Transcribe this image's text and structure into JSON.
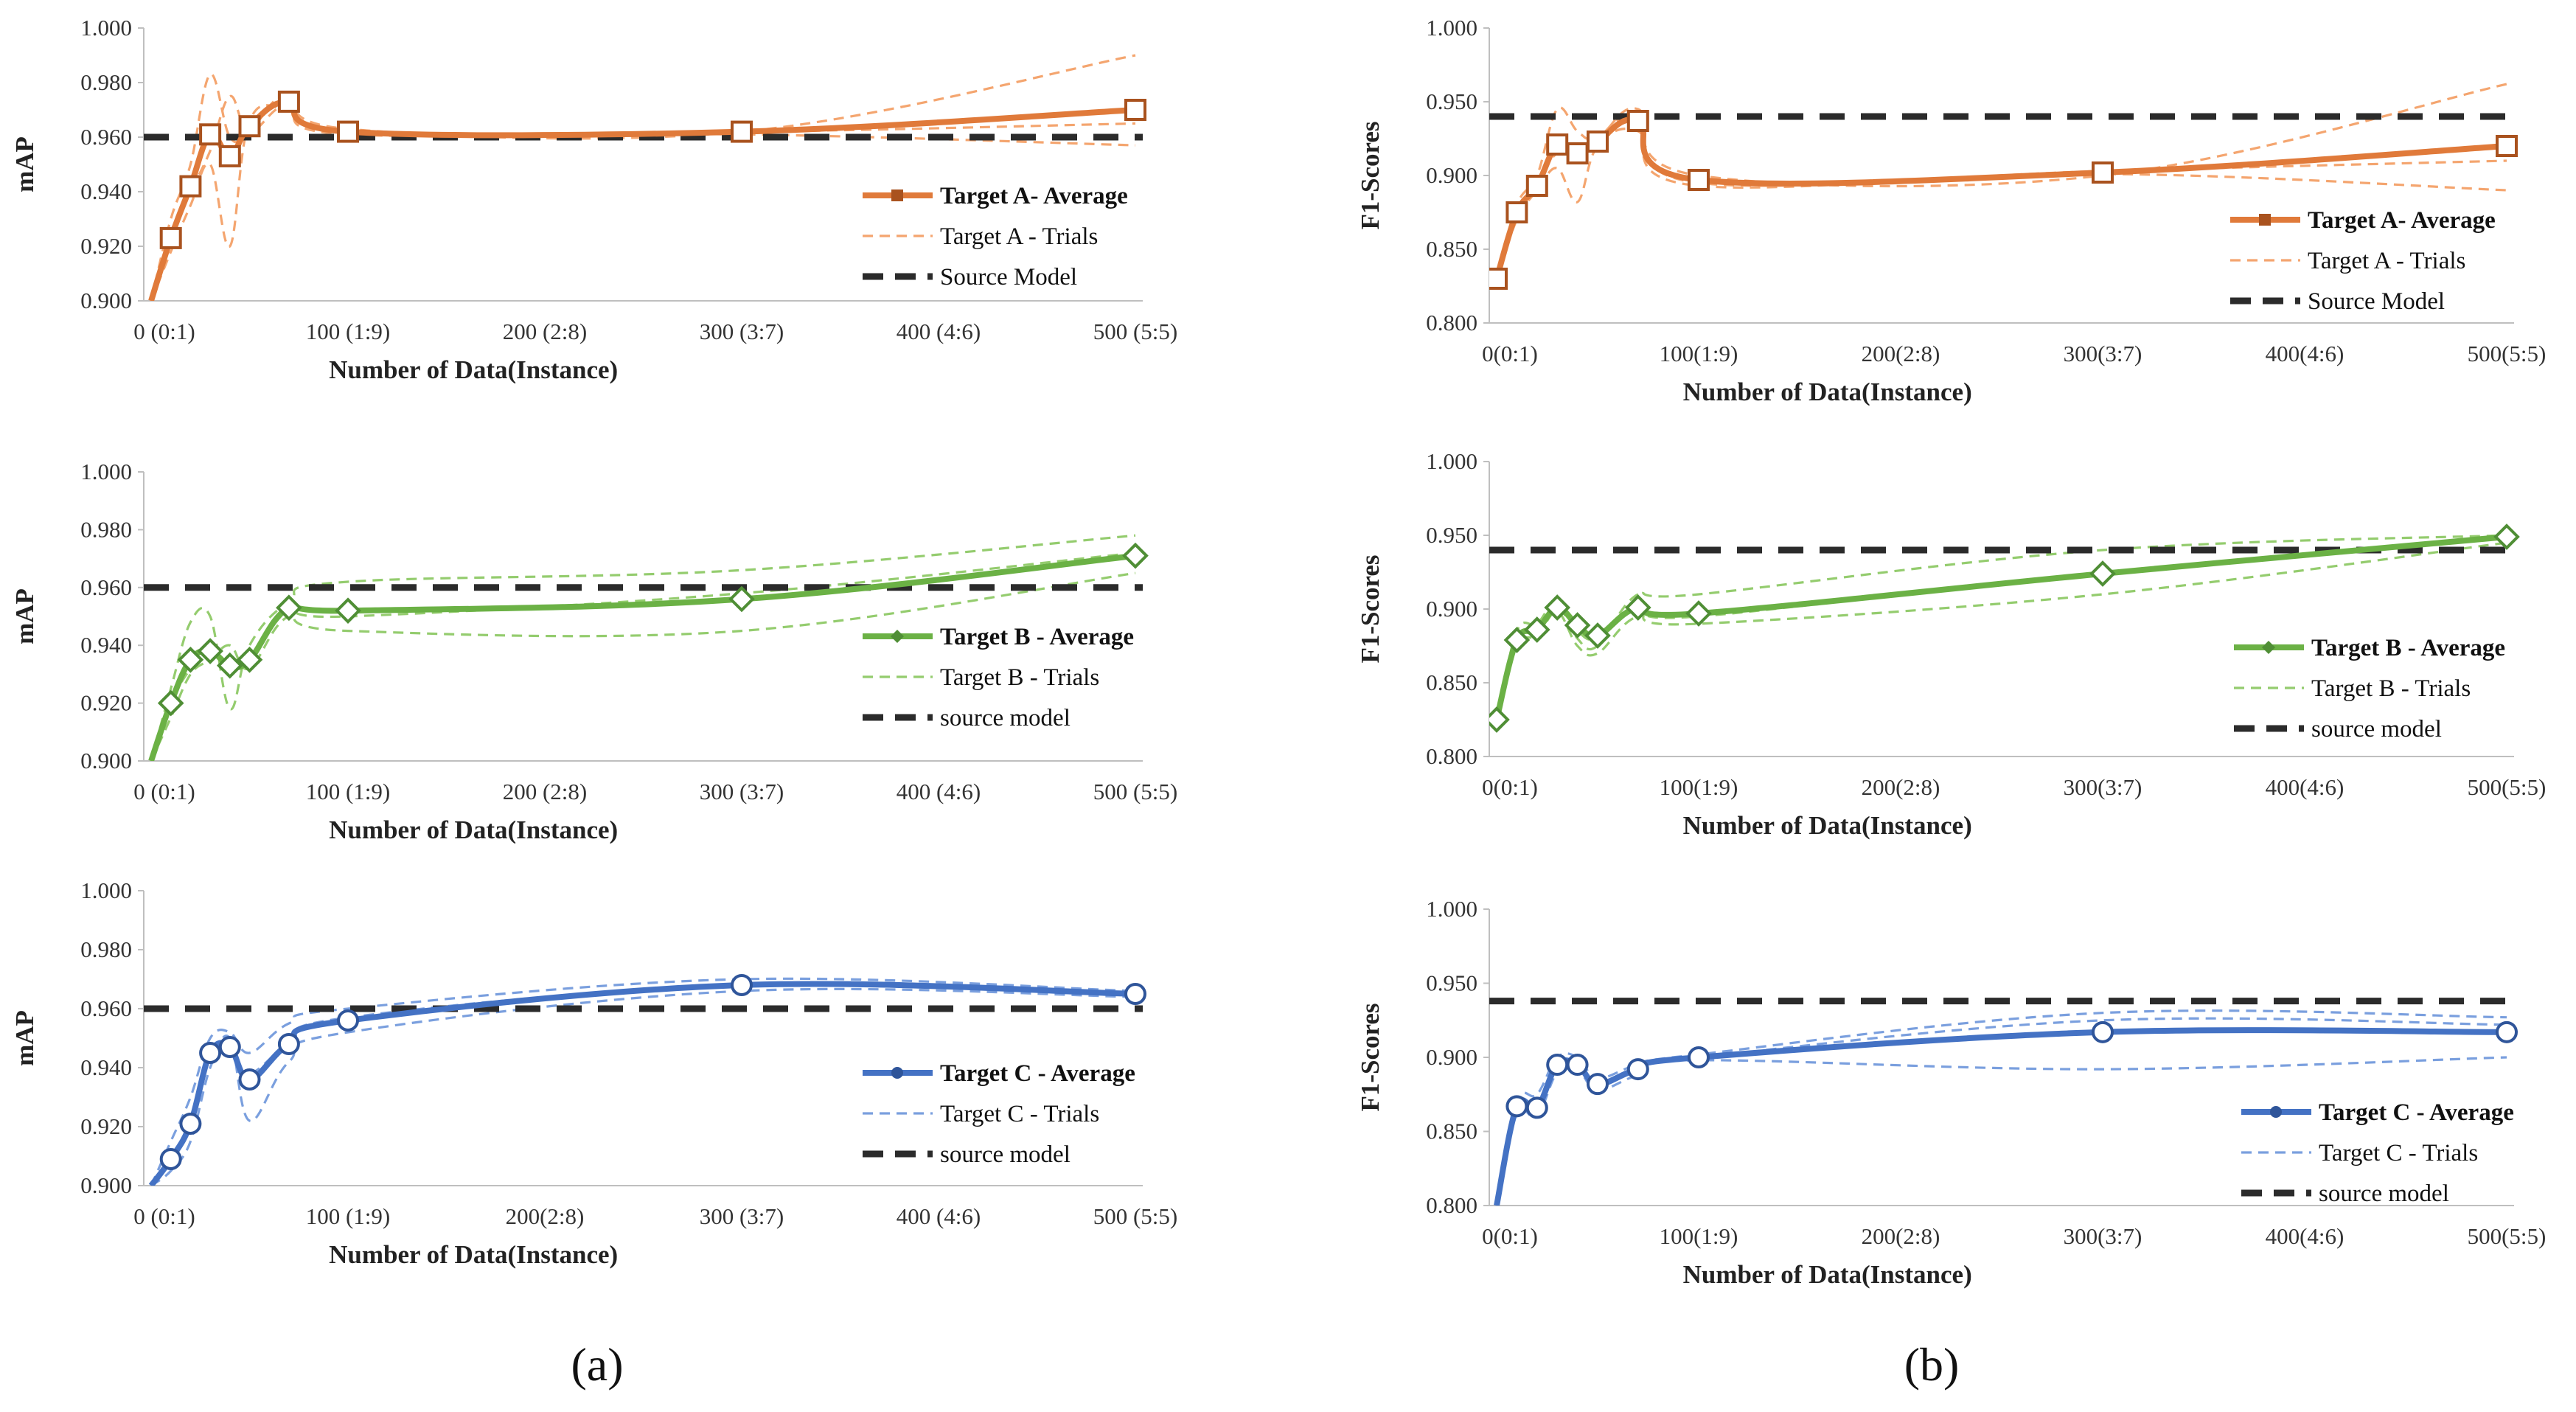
{
  "figure": {
    "panel_labels": [
      "(a)",
      "(b)"
    ],
    "colors": {
      "orange": "#E07A3A",
      "orange_light": "#F4A56F",
      "orange_marker": "#A9521E",
      "green": "#6BB145",
      "green_light": "#94CC6E",
      "green_marker": "#4F8E35",
      "blue": "#4472C4",
      "blue_light": "#7A9FDE",
      "blue_marker": "#2F559A",
      "source": "#2B2B2B",
      "axis": "#BFBFBF"
    }
  },
  "chart_data": [
    {
      "id": "mapA",
      "type": "line",
      "theme": "orange",
      "marker": "square",
      "avgBold": true,
      "xlabel": "Number of Data(Instance)",
      "ylabel": "mAP",
      "ylim": [
        0.9,
        1.0
      ],
      "xlim": [
        0,
        500
      ],
      "yticks": [
        "0.900",
        "0.920",
        "0.940",
        "0.960",
        "0.980",
        "1.000"
      ],
      "xticks": [
        "0 (0:1)",
        "100 (1:9)",
        "200 (2:8)",
        "300 (3:7)",
        "400 (4:6)",
        "500 (5:5)"
      ],
      "series": [
        {
          "name": "Target A- Average",
          "style": "average",
          "x": [
            0,
            10,
            20,
            30,
            40,
            50,
            70,
            100,
            300,
            500
          ],
          "y": [
            0.9,
            0.923,
            0.942,
            0.961,
            0.953,
            0.964,
            0.973,
            0.962,
            0.962,
            0.97
          ]
        },
        {
          "name": "Target A - Trials",
          "style": "trial",
          "x": [
            0,
            10,
            20,
            30,
            40,
            50,
            70,
            100,
            300,
            500
          ],
          "y": [
            0.9,
            0.93,
            0.95,
            0.983,
            0.96,
            0.962,
            0.976,
            0.963,
            0.962,
            0.99
          ]
        },
        {
          "name": "",
          "style": "trial",
          "x": [
            0,
            10,
            20,
            30,
            40,
            50,
            70,
            100,
            300,
            500
          ],
          "y": [
            0.9,
            0.918,
            0.935,
            0.95,
            0.92,
            0.966,
            0.97,
            0.961,
            0.961,
            0.957
          ]
        },
        {
          "name": "",
          "style": "trial",
          "x": [
            0,
            10,
            20,
            30,
            40,
            50,
            70,
            100,
            300,
            500
          ],
          "y": [
            0.9,
            0.925,
            0.94,
            0.955,
            0.975,
            0.962,
            0.972,
            0.962,
            0.962,
            0.965
          ]
        },
        {
          "name": "Source Model",
          "style": "source",
          "x": [
            0,
            500
          ],
          "y": [
            0.96,
            0.96
          ]
        }
      ]
    },
    {
      "id": "f1A",
      "type": "line",
      "theme": "orange",
      "marker": "square",
      "avgBold": true,
      "xlabel": "Number of Data(Instance)",
      "ylabel": "F1-Scores",
      "ylim": [
        0.8,
        1.0
      ],
      "xlim": [
        0,
        500
      ],
      "yticks": [
        "0.800",
        "0.850",
        "0.900",
        "0.950",
        "1.000"
      ],
      "xticks": [
        "0(0:1)",
        "100(1:9)",
        "200(2:8)",
        "300(3:7)",
        "400(4:6)",
        "500(5:5)"
      ],
      "series": [
        {
          "name": "Target A- Average",
          "style": "average",
          "x": [
            0,
            10,
            20,
            30,
            40,
            50,
            70,
            100,
            300,
            500
          ],
          "y": [
            0.83,
            0.875,
            0.893,
            0.921,
            0.915,
            0.923,
            0.937,
            0.897,
            0.902,
            0.92
          ]
        },
        {
          "name": "Target A - Trials",
          "style": "trial",
          "x": [
            0,
            10,
            20,
            30,
            40,
            50,
            70,
            100,
            300,
            500
          ],
          "y": [
            0.83,
            0.88,
            0.9,
            0.945,
            0.93,
            0.925,
            0.945,
            0.9,
            0.9,
            0.962
          ]
        },
        {
          "name": "",
          "style": "trial",
          "x": [
            0,
            10,
            20,
            30,
            40,
            50,
            70,
            100,
            300,
            500
          ],
          "y": [
            0.83,
            0.87,
            0.89,
            0.905,
            0.882,
            0.92,
            0.93,
            0.893,
            0.901,
            0.89
          ]
        },
        {
          "name": "",
          "style": "trial",
          "x": [
            0,
            10,
            20,
            30,
            40,
            50,
            70,
            100,
            300,
            500
          ],
          "y": [
            0.83,
            0.875,
            0.895,
            0.915,
            0.91,
            0.925,
            0.94,
            0.895,
            0.903,
            0.91
          ]
        },
        {
          "name": "Source Model",
          "style": "source",
          "x": [
            0,
            500
          ],
          "y": [
            0.94,
            0.94
          ]
        }
      ]
    },
    {
      "id": "mapB",
      "type": "line",
      "theme": "green",
      "marker": "diamond",
      "avgBold": true,
      "xlabel": "Number of Data(Instance)",
      "ylabel": "mAP",
      "ylim": [
        0.9,
        1.0
      ],
      "xlim": [
        0,
        500
      ],
      "yticks": [
        "0.900",
        "0.920",
        "0.940",
        "0.960",
        "0.980",
        "1.000"
      ],
      "xticks": [
        "0 (0:1)",
        "100 (1:9)",
        "200 (2:8)",
        "300 (3:7)",
        "400 (4:6)",
        "500 (5:5)"
      ],
      "series": [
        {
          "name": "Target B - Average",
          "style": "average",
          "x": [
            0,
            10,
            20,
            30,
            40,
            50,
            70,
            100,
            300,
            500
          ],
          "y": [
            0.9,
            0.92,
            0.935,
            0.938,
            0.933,
            0.935,
            0.953,
            0.952,
            0.956,
            0.971
          ]
        },
        {
          "name": "Target B - Trials",
          "style": "trial",
          "x": [
            0,
            10,
            20,
            30,
            40,
            50,
            70,
            100,
            300,
            500
          ],
          "y": [
            0.9,
            0.925,
            0.948,
            0.95,
            0.918,
            0.94,
            0.955,
            0.962,
            0.966,
            0.978
          ]
        },
        {
          "name": "",
          "style": "trial",
          "x": [
            0,
            10,
            20,
            30,
            40,
            50,
            70,
            100,
            300,
            500
          ],
          "y": [
            0.9,
            0.915,
            0.93,
            0.935,
            0.94,
            0.932,
            0.95,
            0.945,
            0.945,
            0.965
          ]
        },
        {
          "name": "",
          "style": "trial",
          "x": [
            0,
            10,
            20,
            30,
            40,
            50,
            70,
            100,
            300,
            500
          ],
          "y": [
            0.9,
            0.92,
            0.932,
            0.94,
            0.935,
            0.935,
            0.952,
            0.95,
            0.958,
            0.972
          ]
        },
        {
          "name": "source model",
          "style": "source",
          "x": [
            0,
            500
          ],
          "y": [
            0.96,
            0.96
          ]
        }
      ]
    },
    {
      "id": "f1B",
      "type": "line",
      "theme": "green",
      "marker": "diamond",
      "avgBold": true,
      "xlabel": "Number of Data(Instance)",
      "ylabel": "F1-Scores",
      "ylim": [
        0.8,
        1.0
      ],
      "xlim": [
        0,
        500
      ],
      "yticks": [
        "0.800",
        "0.850",
        "0.900",
        "0.950",
        "1.000"
      ],
      "xticks": [
        "0(0:1)",
        "100(1:9)",
        "200(2:8)",
        "300(3:7)",
        "400(4:6)",
        "500(5:5)"
      ],
      "series": [
        {
          "name": "Target B - Average",
          "style": "average",
          "x": [
            0,
            10,
            20,
            30,
            40,
            50,
            70,
            100,
            300,
            500
          ],
          "y": [
            0.825,
            0.879,
            0.886,
            0.901,
            0.889,
            0.882,
            0.901,
            0.897,
            0.924,
            0.949
          ]
        },
        {
          "name": "Target B - Trials",
          "style": "trial",
          "x": [
            0,
            10,
            20,
            30,
            40,
            50,
            70,
            100,
            300,
            500
          ],
          "y": [
            0.825,
            0.885,
            0.89,
            0.905,
            0.88,
            0.875,
            0.91,
            0.91,
            0.94,
            0.95
          ]
        },
        {
          "name": "",
          "style": "trial",
          "x": [
            0,
            10,
            20,
            30,
            40,
            50,
            70,
            100,
            300,
            500
          ],
          "y": [
            0.825,
            0.875,
            0.882,
            0.898,
            0.875,
            0.87,
            0.895,
            0.89,
            0.91,
            0.945
          ]
        },
        {
          "name": "",
          "style": "trial",
          "x": [
            0,
            10,
            20,
            30,
            40,
            50,
            70,
            100,
            300,
            500
          ],
          "y": [
            0.825,
            0.878,
            0.888,
            0.9,
            0.885,
            0.88,
            0.9,
            0.895,
            0.925,
            0.948
          ]
        },
        {
          "name": "source model",
          "style": "source",
          "x": [
            0,
            500
          ],
          "y": [
            0.94,
            0.94
          ]
        }
      ]
    },
    {
      "id": "mapC",
      "type": "line",
      "theme": "blue",
      "marker": "circle",
      "avgBold": true,
      "xlabel": "Number of Data(Instance)",
      "ylabel": "mAP",
      "ylim": [
        0.9,
        1.0
      ],
      "xlim": [
        0,
        500
      ],
      "yticks": [
        "0.900",
        "0.920",
        "0.940",
        "0.960",
        "0.980",
        "1.000"
      ],
      "xticks": [
        "0 (0:1)",
        "100 (1:9)",
        "200(2:8)",
        "300 (3:7)",
        "400 (4:6)",
        "500 (5:5)"
      ],
      "series": [
        {
          "name": "Target C - Average",
          "style": "average",
          "x": [
            0,
            10,
            20,
            30,
            40,
            50,
            70,
            100,
            300,
            500
          ],
          "y": [
            0.9,
            0.909,
            0.921,
            0.945,
            0.947,
            0.936,
            0.948,
            0.956,
            0.968,
            0.965
          ]
        },
        {
          "name": "Target C - Trials",
          "style": "trial",
          "x": [
            0,
            10,
            20,
            30,
            40,
            50,
            70,
            100,
            300,
            500
          ],
          "y": [
            0.9,
            0.915,
            0.93,
            0.95,
            0.952,
            0.945,
            0.955,
            0.96,
            0.97,
            0.966
          ]
        },
        {
          "name": "",
          "style": "trial",
          "x": [
            0,
            10,
            20,
            30,
            40,
            50,
            70,
            100,
            300,
            500
          ],
          "y": [
            0.9,
            0.905,
            0.915,
            0.94,
            0.95,
            0.922,
            0.942,
            0.952,
            0.966,
            0.964
          ]
        },
        {
          "name": "",
          "style": "trial",
          "x": [
            0,
            10,
            20,
            30,
            40,
            50,
            70,
            100,
            300,
            500
          ],
          "y": [
            0.9,
            0.91,
            0.92,
            0.945,
            0.945,
            0.938,
            0.948,
            0.957,
            0.968,
            0.965
          ]
        },
        {
          "name": "source model",
          "style": "source",
          "x": [
            0,
            500
          ],
          "y": [
            0.96,
            0.96
          ]
        }
      ]
    },
    {
      "id": "f1C",
      "type": "line",
      "theme": "blue",
      "marker": "circle",
      "avgBold": true,
      "xlabel": "Number of Data(Instance)",
      "ylabel": "F1-Scores",
      "ylim": [
        0.8,
        1.0
      ],
      "xlim": [
        0,
        500
      ],
      "yticks": [
        "0.800",
        "0.850",
        "0.900",
        "0.950",
        "1.000"
      ],
      "xticks": [
        "0(0:1)",
        "100(1:9)",
        "200(2:8)",
        "300(3:7)",
        "400(4:6)",
        "500(5:5)"
      ],
      "series": [
        {
          "name": "Target C - Average",
          "style": "average",
          "x": [
            0,
            10,
            20,
            30,
            40,
            50,
            70,
            100,
            300,
            500
          ],
          "y": [
            0.8,
            0.867,
            0.866,
            0.895,
            0.895,
            0.882,
            0.892,
            0.9,
            0.917,
            0.917
          ]
        },
        {
          "name": "Target C - Trials",
          "style": "trial",
          "x": [
            0,
            10,
            20,
            30,
            40,
            50,
            70,
            100,
            300,
            500
          ],
          "y": [
            0.8,
            0.87,
            0.875,
            0.9,
            0.9,
            0.886,
            0.895,
            0.902,
            0.93,
            0.927
          ]
        },
        {
          "name": "",
          "style": "trial",
          "x": [
            0,
            10,
            20,
            30,
            40,
            50,
            70,
            100,
            300,
            500
          ],
          "y": [
            0.8,
            0.862,
            0.86,
            0.89,
            0.892,
            0.878,
            0.888,
            0.898,
            0.892,
            0.9
          ]
        },
        {
          "name": "",
          "style": "trial",
          "x": [
            0,
            10,
            20,
            30,
            40,
            50,
            70,
            100,
            300,
            500
          ],
          "y": [
            0.8,
            0.866,
            0.864,
            0.895,
            0.894,
            0.88,
            0.893,
            0.9,
            0.925,
            0.922
          ]
        },
        {
          "name": "source model",
          "style": "source",
          "x": [
            0,
            500
          ],
          "y": [
            0.938,
            0.938
          ]
        }
      ]
    }
  ]
}
